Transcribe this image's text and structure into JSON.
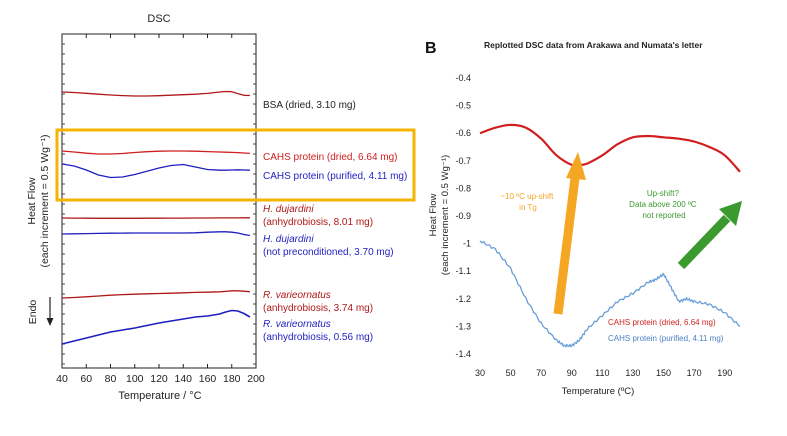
{
  "colors": {
    "red": "#d01f1f",
    "dark_red": "#b01818",
    "blue": "#1f1fc0",
    "light_blue": "#6a9fd8",
    "highlight": "#f5b400",
    "orange_arrow": "#f5a623",
    "green_arrow": "#3a9a2e",
    "axis": "#222222"
  },
  "chart_data": [
    {
      "type": "line",
      "panel": "A",
      "title": "DSC",
      "xlabel": "Temperature / °C",
      "ylabel_line1": "Heat Flow",
      "ylabel_line2": "(each increment = 0.5 Wg⁻¹)",
      "endo_label": "Endo",
      "xlim": [
        40,
        200
      ],
      "xticks": [
        "40",
        "60",
        "80",
        "100",
        "120",
        "140",
        "160",
        "180",
        "200"
      ],
      "x": [
        40,
        50,
        60,
        70,
        80,
        90,
        100,
        110,
        120,
        130,
        140,
        150,
        160,
        170,
        175,
        180,
        185,
        190,
        195
      ],
      "series": [
        {
          "name": "BSA (dried, 3.10 mg)",
          "italic_line": "",
          "sub_line": "",
          "color": "dark_red",
          "values": [
            0.0,
            0.05,
            0.13,
            0.22,
            0.3,
            0.36,
            0.4,
            0.4,
            0.37,
            0.32,
            0.27,
            0.22,
            0.14,
            0.0,
            -0.05,
            -0.03,
            0.16,
            0.33,
            0.35
          ]
        },
        {
          "name": "CAHS protein (dried, 6.64 mg)",
          "italic_line": "",
          "sub_line": "",
          "color": "red",
          "values": [
            0.0,
            0.1,
            0.22,
            0.3,
            0.3,
            0.25,
            0.15,
            0.07,
            0.02,
            0.0,
            0.0,
            0.02,
            0.06,
            0.1,
            0.12,
            0.14,
            0.16,
            0.2,
            0.24
          ]
        },
        {
          "name": "CAHS protein (purified, 4.11 mg)",
          "italic_line": "",
          "sub_line": "",
          "color": "blue",
          "values": [
            0.0,
            0.2,
            0.6,
            1.1,
            1.35,
            1.3,
            1.05,
            0.72,
            0.4,
            0.15,
            0.05,
            0.3,
            0.55,
            0.62,
            0.62,
            0.6,
            0.58,
            0.6,
            0.62
          ]
        },
        {
          "name": "",
          "italic_line": "H. dujardini",
          "sub_line": "(anhydrobiosis, 8.01 mg)",
          "color": "dark_red",
          "values": [
            0.0,
            0.01,
            0.02,
            0.03,
            0.03,
            0.03,
            0.03,
            0.02,
            0.02,
            0.01,
            0.01,
            0.0,
            0.0,
            -0.01,
            -0.01,
            -0.01,
            -0.01,
            -0.02,
            -0.02
          ]
        },
        {
          "name": "",
          "italic_line": "H. dujardini",
          "sub_line": "(not preconditioned, 3.70 mg)",
          "color": "blue",
          "values": [
            0.0,
            -0.02,
            -0.04,
            -0.06,
            -0.08,
            -0.09,
            -0.1,
            -0.1,
            -0.1,
            -0.1,
            -0.1,
            -0.12,
            -0.18,
            -0.22,
            -0.22,
            -0.18,
            -0.1,
            0.05,
            0.15
          ]
        },
        {
          "name": "",
          "italic_line": "R. varieornatus",
          "sub_line": "(anhydrobiosis, 3.74 mg)",
          "color": "dark_red",
          "values": [
            0.0,
            -0.05,
            -0.12,
            -0.2,
            -0.28,
            -0.34,
            -0.38,
            -0.42,
            -0.45,
            -0.48,
            -0.52,
            -0.56,
            -0.58,
            -0.62,
            -0.66,
            -0.72,
            -0.72,
            -0.68,
            -0.62
          ]
        },
        {
          "name": "",
          "italic_line": "R. varieornatus",
          "sub_line": "(anhydrobiosis, 0.56 mg)",
          "color": "blue",
          "values": [
            0.0,
            -0.3,
            -0.6,
            -0.9,
            -1.2,
            -1.4,
            -1.6,
            -1.85,
            -2.1,
            -2.3,
            -2.5,
            -2.7,
            -2.8,
            -3.0,
            -3.2,
            -3.35,
            -3.3,
            -3.05,
            -2.7
          ]
        }
      ]
    },
    {
      "type": "line",
      "panel": "B",
      "panel_label": "B",
      "title": "Replotted DSC data from Arakawa and Numata's letter",
      "xlabel": "Temperature (ºC)",
      "ylabel_line1": "Heat Flow",
      "ylabel_line2": "(each increment = 0.5 Wg⁻¹)",
      "xlim": [
        30,
        200
      ],
      "ylim": [
        -1.4,
        -0.4
      ],
      "xticks": [
        "30",
        "50",
        "70",
        "90",
        "110",
        "130",
        "150",
        "170",
        "190"
      ],
      "yticks": [
        "-0.4",
        "-0.5",
        "-0.6",
        "-0.7",
        "-0.8",
        "-0.9",
        "-1",
        "-1.1",
        "-1.2",
        "-1.3",
        "-1.4"
      ],
      "series": [
        {
          "name": "CAHS protein (dried, 6.64 mg)",
          "color": "red",
          "x": [
            30,
            40,
            50,
            60,
            70,
            80,
            90,
            95,
            100,
            110,
            120,
            130,
            140,
            150,
            160,
            170,
            180,
            190,
            200
          ],
          "values": [
            -0.6,
            -0.58,
            -0.57,
            -0.58,
            -0.62,
            -0.68,
            -0.715,
            -0.715,
            -0.71,
            -0.68,
            -0.64,
            -0.615,
            -0.61,
            -0.615,
            -0.62,
            -0.63,
            -0.65,
            -0.68,
            -0.74
          ]
        },
        {
          "name": "CAHS protein (purified, 4.11 mg)",
          "color": "light_blue",
          "x": [
            30,
            40,
            50,
            60,
            70,
            80,
            85,
            90,
            95,
            100,
            110,
            120,
            130,
            140,
            145,
            150,
            155,
            160,
            165,
            170,
            180,
            190,
            200
          ],
          "values": [
            -0.99,
            -1.02,
            -1.09,
            -1.2,
            -1.29,
            -1.35,
            -1.37,
            -1.37,
            -1.35,
            -1.31,
            -1.26,
            -1.21,
            -1.18,
            -1.14,
            -1.13,
            -1.11,
            -1.16,
            -1.21,
            -1.2,
            -1.21,
            -1.22,
            -1.25,
            -1.3
          ]
        }
      ],
      "annotations": {
        "orange": "~10 ºC up-shift\nin Tg",
        "green": "Up-shift?\nData above 200 ºC\nnot reported"
      }
    }
  ]
}
